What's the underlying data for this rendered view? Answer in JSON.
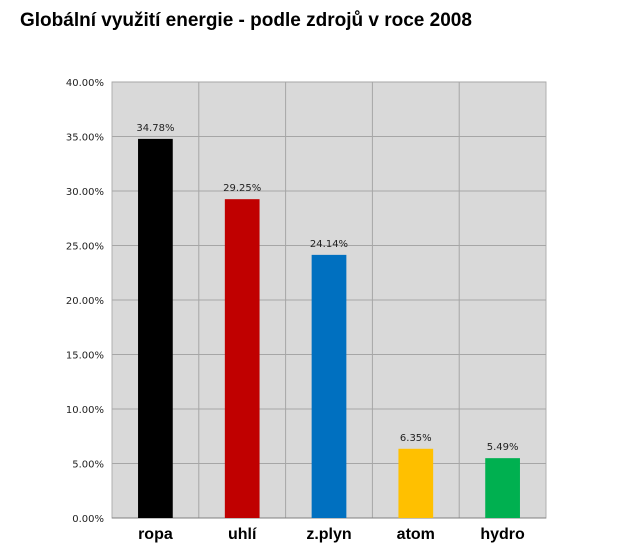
{
  "chart_data": {
    "type": "bar",
    "title": "Globální využití energie  -  podle zdrojů v roce 2008",
    "categories": [
      "ropa",
      "uhlí",
      "z.plyn",
      "atom",
      "hydro"
    ],
    "values": [
      34.78,
      29.25,
      24.14,
      6.35,
      5.49
    ],
    "data_labels": [
      "34.78%",
      "29.25%",
      "24.14%",
      "6.35%",
      "5.49%"
    ],
    "colors": [
      "#000000",
      "#c00000",
      "#0070c0",
      "#ffc000",
      "#00b050"
    ],
    "ylim": [
      0,
      40
    ],
    "yticks": [
      0,
      5,
      10,
      15,
      20,
      25,
      30,
      35,
      40
    ],
    "ytick_labels": [
      "0.00%",
      "5.00%",
      "10.00%",
      "15.00%",
      "20.00%",
      "25.00%",
      "30.00%",
      "35.00%",
      "40.00%"
    ],
    "grid": true,
    "plot_background": "#d9d9d9",
    "legend": "none"
  }
}
